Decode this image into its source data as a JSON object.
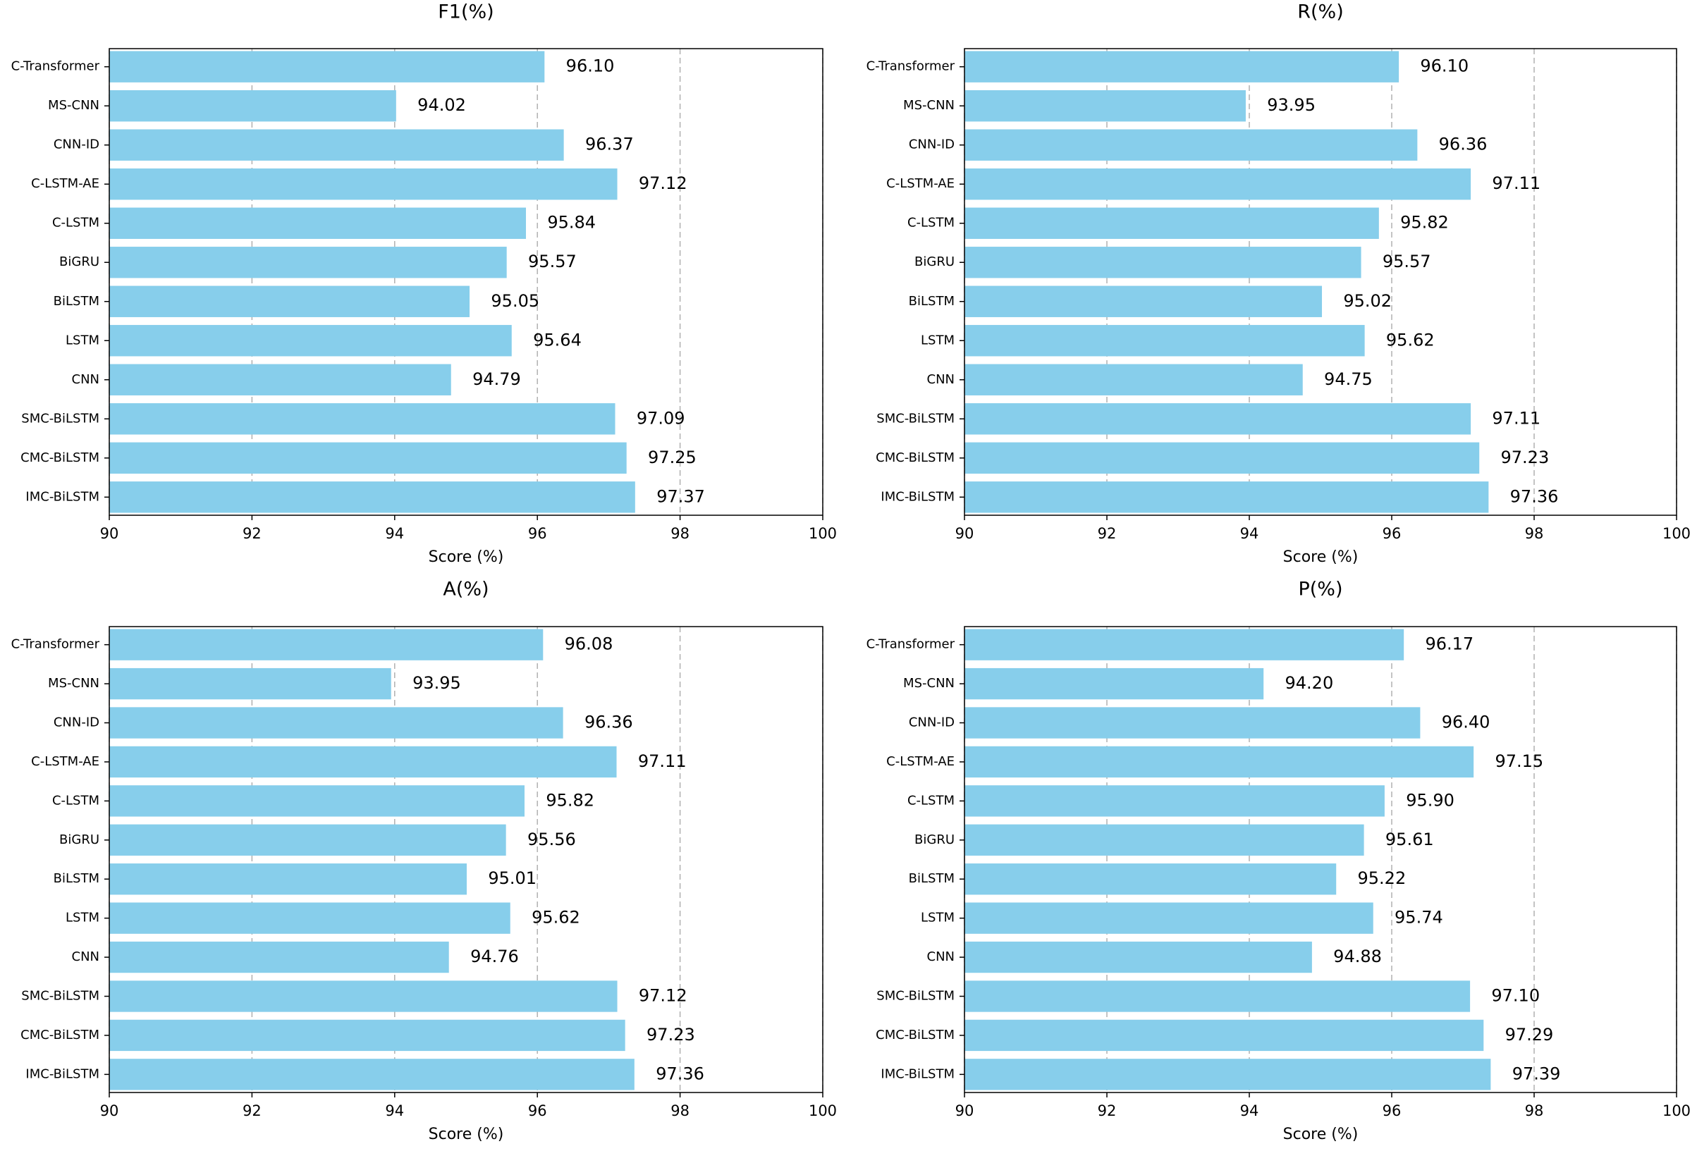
{
  "chart_data": [
    {
      "type": "bar",
      "orientation": "horizontal",
      "title": "F1(%)",
      "xlabel": "Score (%)",
      "color": "#87ceeb",
      "categories": [
        "C-Transformer",
        "MS-CNN",
        "CNN-ID",
        "C-LSTM-AE",
        "C-LSTM",
        "BiGRU",
        "BiLSTM",
        "LSTM",
        "CNN",
        "SMC-BiLSTM",
        "CMC-BiLSTM",
        "IMC-BiLSTM"
      ],
      "values": [
        96.1,
        94.02,
        96.37,
        97.12,
        95.84,
        95.57,
        95.05,
        95.64,
        94.79,
        97.09,
        97.25,
        97.37
      ],
      "value_labels": [
        "96.10",
        "94.02",
        "96.37",
        "97.12",
        "95.84",
        "95.57",
        "95.05",
        "95.64",
        "94.79",
        "97.09",
        "97.25",
        "97.37"
      ],
      "xlim": [
        90,
        100
      ],
      "xticks": [
        90,
        92,
        94,
        96,
        98,
        100
      ],
      "grid": true
    },
    {
      "type": "bar",
      "orientation": "horizontal",
      "title": "R(%)",
      "xlabel": "Score (%)",
      "color": "#87ceeb",
      "categories": [
        "C-Transformer",
        "MS-CNN",
        "CNN-ID",
        "C-LSTM-AE",
        "C-LSTM",
        "BiGRU",
        "BiLSTM",
        "LSTM",
        "CNN",
        "SMC-BiLSTM",
        "CMC-BiLSTM",
        "IMC-BiLSTM"
      ],
      "values": [
        96.1,
        93.95,
        96.36,
        97.11,
        95.82,
        95.57,
        95.02,
        95.62,
        94.75,
        97.11,
        97.23,
        97.36
      ],
      "value_labels": [
        "96.10",
        "93.95",
        "96.36",
        "97.11",
        "95.82",
        "95.57",
        "95.02",
        "95.62",
        "94.75",
        "97.11",
        "97.23",
        "97.36"
      ],
      "xlim": [
        90,
        100
      ],
      "xticks": [
        90,
        92,
        94,
        96,
        98,
        100
      ],
      "grid": true
    },
    {
      "type": "bar",
      "orientation": "horizontal",
      "title": "A(%)",
      "xlabel": "Score (%)",
      "color": "#87ceeb",
      "categories": [
        "C-Transformer",
        "MS-CNN",
        "CNN-ID",
        "C-LSTM-AE",
        "C-LSTM",
        "BiGRU",
        "BiLSTM",
        "LSTM",
        "CNN",
        "SMC-BiLSTM",
        "CMC-BiLSTM",
        "IMC-BiLSTM"
      ],
      "values": [
        96.08,
        93.95,
        96.36,
        97.11,
        95.82,
        95.56,
        95.01,
        95.62,
        94.76,
        97.12,
        97.23,
        97.36
      ],
      "value_labels": [
        "96.08",
        "93.95",
        "96.36",
        "97.11",
        "95.82",
        "95.56",
        "95.01",
        "95.62",
        "94.76",
        "97.12",
        "97.23",
        "97.36"
      ],
      "xlim": [
        90,
        100
      ],
      "xticks": [
        90,
        92,
        94,
        96,
        98,
        100
      ],
      "grid": true
    },
    {
      "type": "bar",
      "orientation": "horizontal",
      "title": "P(%)",
      "xlabel": "Score (%)",
      "color": "#87ceeb",
      "categories": [
        "C-Transformer",
        "MS-CNN",
        "CNN-ID",
        "C-LSTM-AE",
        "C-LSTM",
        "BiGRU",
        "BiLSTM",
        "LSTM",
        "CNN",
        "SMC-BiLSTM",
        "CMC-BiLSTM",
        "IMC-BiLSTM"
      ],
      "values": [
        96.17,
        94.2,
        96.4,
        97.15,
        95.9,
        95.61,
        95.22,
        95.74,
        94.88,
        97.1,
        97.29,
        97.39
      ],
      "value_labels": [
        "96.17",
        "94.20",
        "96.40",
        "97.15",
        "95.90",
        "95.61",
        "95.22",
        "95.74",
        "94.88",
        "97.10",
        "97.29",
        "97.39"
      ],
      "xlim": [
        90,
        100
      ],
      "xticks": [
        90,
        92,
        94,
        96,
        98,
        100
      ],
      "grid": true
    }
  ]
}
